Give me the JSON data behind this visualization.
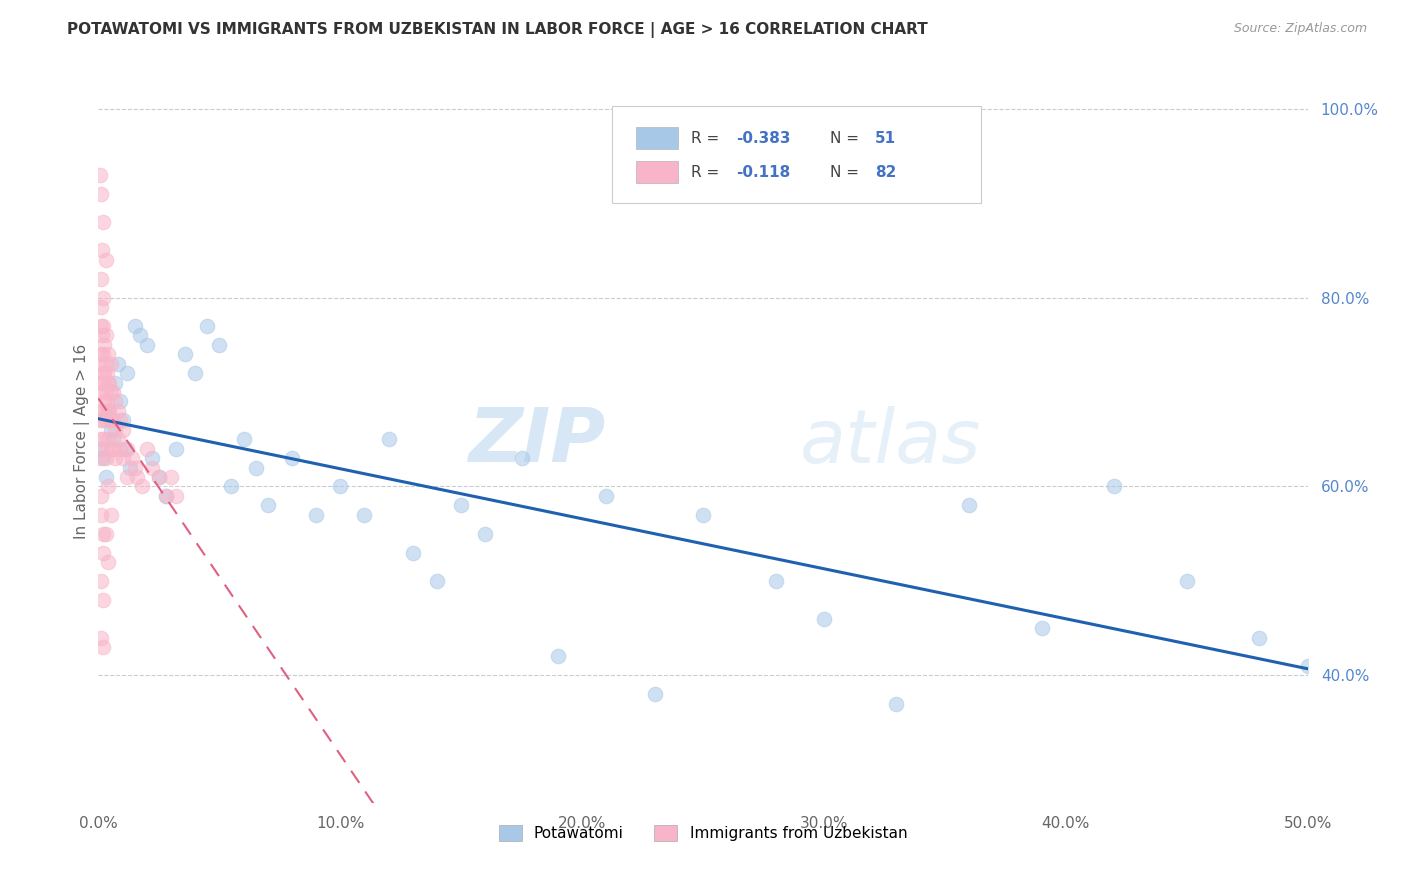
{
  "title": "POTAWATOMI VS IMMIGRANTS FROM UZBEKISTAN IN LABOR FORCE | AGE > 16 CORRELATION CHART",
  "source": "Source: ZipAtlas.com",
  "ylabel": "In Labor Force | Age > 16",
  "xmin": 0.0,
  "xmax": 0.5,
  "ymin": 0.265,
  "ymax": 1.03,
  "xticks": [
    0.0,
    0.1,
    0.2,
    0.3,
    0.4,
    0.5
  ],
  "xtick_labels": [
    "0.0%",
    "10.0%",
    "20.0%",
    "30.0%",
    "40.0%",
    "50.0%"
  ],
  "yticks_right": [
    0.4,
    0.6,
    0.8,
    1.0
  ],
  "ytick_labels_right": [
    "40.0%",
    "60.0%",
    "80.0%",
    "100.0%"
  ],
  "legend_blue_r": "-0.383",
  "legend_blue_n": "51",
  "legend_pink_r": "-0.118",
  "legend_pink_n": "82",
  "blue_color": "#a8c8e8",
  "pink_color": "#f8b4c8",
  "blue_line_color": "#2060b0",
  "pink_line_color": "#e06080",
  "watermark_zip": "ZIP",
  "watermark_atlas": "atlas",
  "blue_x": [
    0.001,
    0.002,
    0.003,
    0.004,
    0.005,
    0.006,
    0.007,
    0.008,
    0.009,
    0.01,
    0.011,
    0.012,
    0.013,
    0.015,
    0.017,
    0.02,
    0.022,
    0.025,
    0.028,
    0.032,
    0.036,
    0.04,
    0.045,
    0.05,
    0.055,
    0.06,
    0.065,
    0.07,
    0.08,
    0.09,
    0.1,
    0.11,
    0.12,
    0.13,
    0.14,
    0.15,
    0.16,
    0.175,
    0.19,
    0.21,
    0.23,
    0.25,
    0.28,
    0.3,
    0.33,
    0.36,
    0.39,
    0.42,
    0.45,
    0.48,
    0.5
  ],
  "blue_y": [
    0.64,
    0.63,
    0.61,
    0.68,
    0.66,
    0.65,
    0.71,
    0.73,
    0.69,
    0.67,
    0.64,
    0.72,
    0.62,
    0.77,
    0.76,
    0.75,
    0.63,
    0.61,
    0.59,
    0.64,
    0.74,
    0.72,
    0.77,
    0.75,
    0.6,
    0.65,
    0.62,
    0.58,
    0.63,
    0.57,
    0.6,
    0.57,
    0.65,
    0.53,
    0.5,
    0.58,
    0.55,
    0.63,
    0.42,
    0.59,
    0.38,
    0.57,
    0.5,
    0.46,
    0.37,
    0.58,
    0.45,
    0.6,
    0.5,
    0.44,
    0.41
  ],
  "pink_x": [
    0.0005,
    0.0005,
    0.0005,
    0.001,
    0.001,
    0.001,
    0.001,
    0.001,
    0.0015,
    0.0015,
    0.0015,
    0.0015,
    0.002,
    0.002,
    0.002,
    0.002,
    0.002,
    0.002,
    0.0025,
    0.0025,
    0.0025,
    0.003,
    0.003,
    0.003,
    0.003,
    0.003,
    0.0035,
    0.0035,
    0.004,
    0.004,
    0.004,
    0.004,
    0.0045,
    0.0045,
    0.005,
    0.005,
    0.005,
    0.005,
    0.006,
    0.006,
    0.006,
    0.007,
    0.007,
    0.007,
    0.008,
    0.008,
    0.009,
    0.009,
    0.01,
    0.01,
    0.012,
    0.012,
    0.014,
    0.015,
    0.016,
    0.018,
    0.02,
    0.022,
    0.025,
    0.028,
    0.03,
    0.032,
    0.001,
    0.001,
    0.001,
    0.002,
    0.002,
    0.002,
    0.0015,
    0.003,
    0.004,
    0.005,
    0.003,
    0.004,
    0.001,
    0.002,
    0.003,
    0.001,
    0.002,
    0.0005,
    0.001,
    0.002
  ],
  "pink_y": [
    0.67,
    0.65,
    0.63,
    0.79,
    0.77,
    0.74,
    0.71,
    0.68,
    0.76,
    0.73,
    0.7,
    0.67,
    0.8,
    0.77,
    0.74,
    0.71,
    0.68,
    0.65,
    0.75,
    0.72,
    0.69,
    0.76,
    0.73,
    0.7,
    0.67,
    0.64,
    0.72,
    0.69,
    0.74,
    0.71,
    0.68,
    0.65,
    0.71,
    0.68,
    0.73,
    0.7,
    0.67,
    0.64,
    0.7,
    0.67,
    0.64,
    0.69,
    0.66,
    0.63,
    0.68,
    0.65,
    0.67,
    0.64,
    0.66,
    0.63,
    0.64,
    0.61,
    0.63,
    0.62,
    0.61,
    0.6,
    0.64,
    0.62,
    0.61,
    0.59,
    0.61,
    0.59,
    0.82,
    0.59,
    0.57,
    0.72,
    0.55,
    0.53,
    0.85,
    0.63,
    0.6,
    0.57,
    0.55,
    0.52,
    0.91,
    0.88,
    0.84,
    0.44,
    0.43,
    0.93,
    0.5,
    0.48
  ]
}
